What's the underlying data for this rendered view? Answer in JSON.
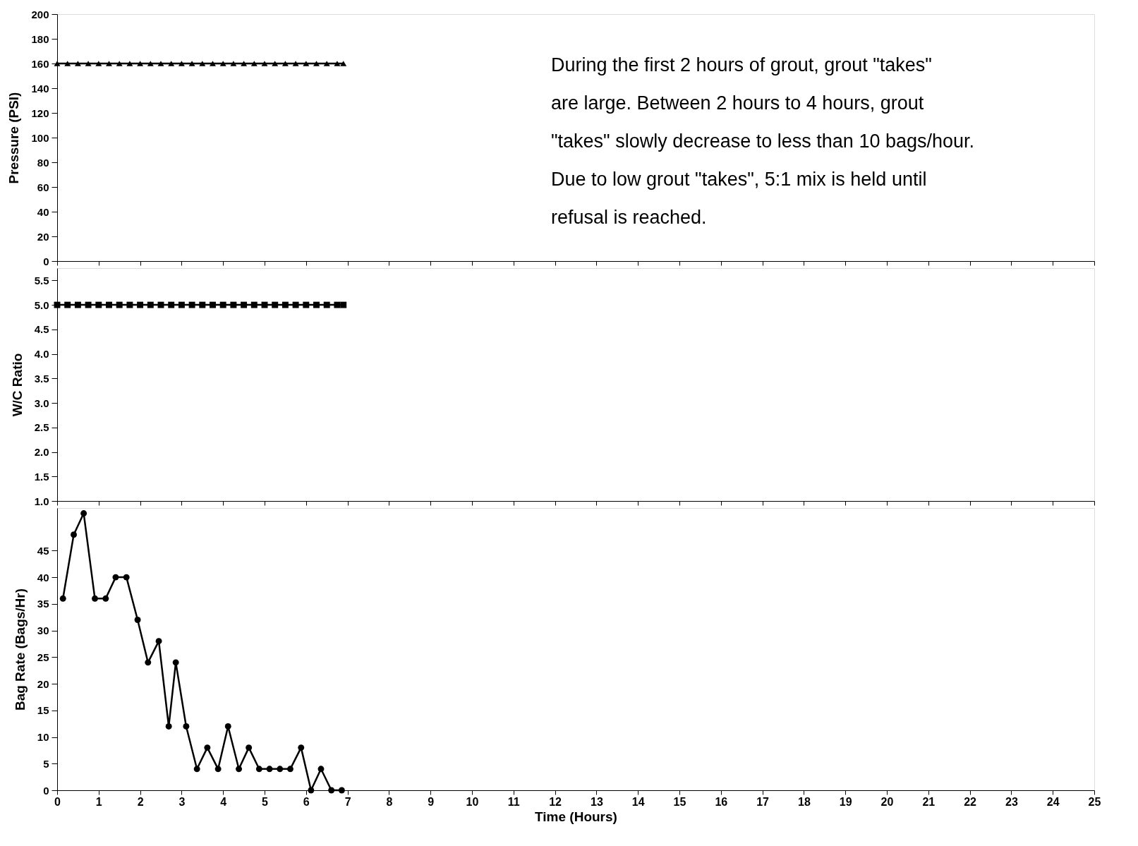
{
  "chart_data": [
    {
      "type": "line",
      "ylabel": "Pressure (PSI)",
      "xlim": [
        0,
        25
      ],
      "xticks": [
        0,
        1,
        2,
        3,
        4,
        5,
        6,
        7,
        8,
        9,
        10,
        11,
        12,
        13,
        14,
        15,
        16,
        17,
        18,
        19,
        20,
        21,
        22,
        23,
        24,
        25
      ],
      "ylim": [
        0,
        200
      ],
      "yticks": [
        0,
        20,
        40,
        60,
        80,
        100,
        120,
        140,
        160,
        180,
        200
      ],
      "tick_labels": "y",
      "grid": false,
      "annotations": [
        "During the first 2 hours of grout, grout \"takes\" are large.  Between 2 hours to 4 hours, grout \"takes\" slowly decrease to less than 10 bags/hour. Due to low grout \"takes\", 5:1 mix is held until refusal is reached."
      ],
      "series": [
        {
          "color": "#000000",
          "marker": "triangle",
          "x": [
            0,
            0.25,
            0.5,
            0.75,
            1,
            1.25,
            1.5,
            1.75,
            2,
            2.25,
            2.5,
            2.75,
            3,
            3.25,
            3.5,
            3.75,
            4,
            4.25,
            4.5,
            4.75,
            5,
            5.25,
            5.5,
            5.75,
            6,
            6.25,
            6.5,
            6.75,
            6.9
          ],
          "values": [
            160,
            160,
            160,
            160,
            160,
            160,
            160,
            160,
            160,
            160,
            160,
            160,
            160,
            160,
            160,
            160,
            160,
            160,
            160,
            160,
            160,
            160,
            160,
            160,
            160,
            160,
            160,
            160,
            160
          ]
        }
      ]
    },
    {
      "type": "line",
      "ylabel": "W/C Ratio",
      "xlim": [
        0,
        25
      ],
      "xticks": [
        0,
        1,
        2,
        3,
        4,
        5,
        6,
        7,
        8,
        9,
        10,
        11,
        12,
        13,
        14,
        15,
        16,
        17,
        18,
        19,
        20,
        21,
        22,
        23,
        24,
        25
      ],
      "ylim": [
        1.0,
        5.75
      ],
      "yticks": [
        {
          "value": 1,
          "label": "1.0"
        },
        1.5,
        {
          "value": 2,
          "label": "2.0"
        },
        2.5,
        {
          "value": 3,
          "label": "3.0"
        },
        3.5,
        {
          "value": 4,
          "label": "4.0"
        },
        4.5,
        {
          "value": 5,
          "label": "5.0"
        },
        5.5
      ],
      "tick_labels": "y",
      "grid": false,
      "series": [
        {
          "color": "#000000",
          "marker": "square",
          "x": [
            0,
            0.25,
            0.5,
            0.75,
            1,
            1.25,
            1.5,
            1.75,
            2,
            2.25,
            2.5,
            2.75,
            3,
            3.25,
            3.5,
            3.75,
            4,
            4.25,
            4.5,
            4.75,
            5,
            5.25,
            5.5,
            5.75,
            6,
            6.25,
            6.5,
            6.75,
            6.9
          ],
          "values": [
            5,
            5,
            5,
            5,
            5,
            5,
            5,
            5,
            5,
            5,
            5,
            5,
            5,
            5,
            5,
            5,
            5,
            5,
            5,
            5,
            5,
            5,
            5,
            5,
            5,
            5,
            5,
            5,
            5
          ]
        }
      ]
    },
    {
      "type": "line",
      "ylabel": "Bag Rate (Bags/Hr)",
      "xlabel": "Time (Hours)",
      "xlim": [
        0,
        25
      ],
      "xticks": [
        0,
        1,
        2,
        3,
        4,
        5,
        6,
        7,
        8,
        9,
        10,
        11,
        12,
        13,
        14,
        15,
        16,
        17,
        18,
        19,
        20,
        21,
        22,
        23,
        24,
        25
      ],
      "ylim": [
        0,
        53
      ],
      "yticks": [
        0,
        5,
        10,
        15,
        20,
        25,
        30,
        35,
        40,
        45
      ],
      "grid": false,
      "series": [
        {
          "color": "#000000",
          "marker": "circle",
          "x": [
            0.14,
            0.4,
            0.64,
            0.91,
            1.17,
            1.41,
            1.67,
            1.94,
            2.19,
            2.45,
            2.69,
            2.86,
            3.11,
            3.37,
            3.62,
            3.88,
            4.12,
            4.38,
            4.62,
            4.87,
            5.12,
            5.37,
            5.62,
            5.88,
            6.12,
            6.36,
            6.61,
            6.86
          ],
          "values": [
            36,
            48,
            52,
            36,
            36,
            40,
            40,
            32,
            24,
            28,
            12,
            24,
            12,
            4,
            8,
            4,
            12,
            4,
            8,
            4,
            4,
            4,
            4,
            8,
            0,
            4,
            0,
            0
          ]
        }
      ]
    }
  ]
}
